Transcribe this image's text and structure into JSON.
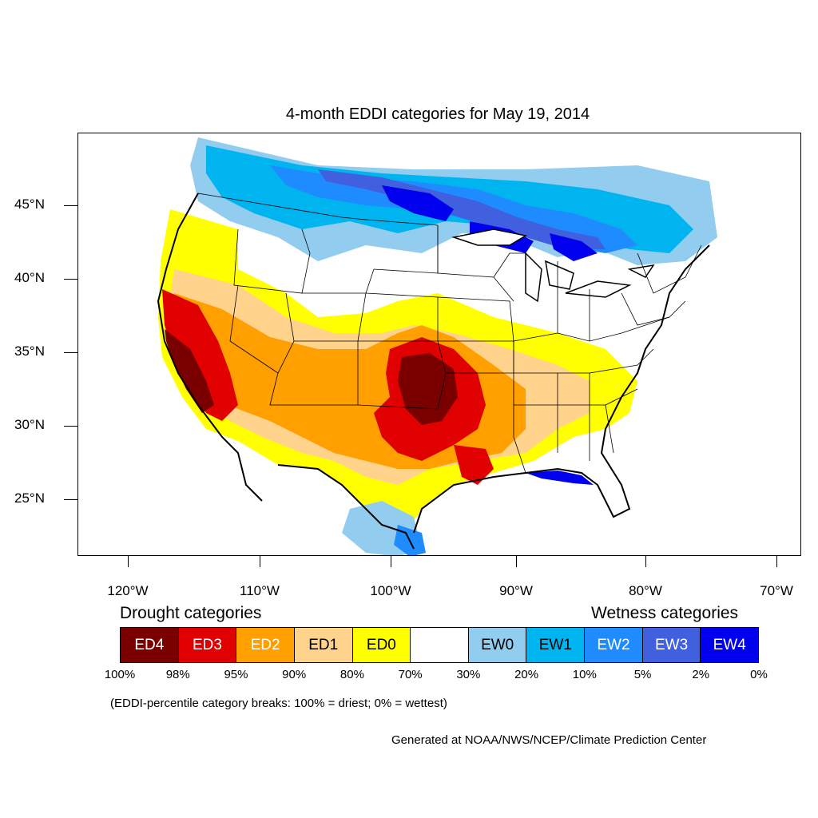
{
  "title": "4-month EDDI categories for May 19, 2014",
  "lat_labels": [
    "45°N",
    "40°N",
    "35°N",
    "30°N",
    "25°N"
  ],
  "lon_labels": [
    "120°W",
    "110°W",
    "100°W",
    "90°W",
    "80°W",
    "70°W"
  ],
  "legend": {
    "drought_heading": "Drought categories",
    "wetness_heading": "Wetness categories",
    "categories": [
      {
        "label": "ED4",
        "color": "#7a0000",
        "text_color": "#ffffff"
      },
      {
        "label": "ED3",
        "color": "#e00000",
        "text_color": "#ffffff"
      },
      {
        "label": "ED2",
        "color": "#ff9f00",
        "text_color": "#ffffff"
      },
      {
        "label": "ED1",
        "color": "#ffd38c",
        "text_color": "#000000"
      },
      {
        "label": "ED0",
        "color": "#ffff00",
        "text_color": "#000000"
      },
      {
        "label": "",
        "color": "#ffffff",
        "text_color": "#000000"
      },
      {
        "label": "EW0",
        "color": "#92cdf0",
        "text_color": "#000000"
      },
      {
        "label": "EW1",
        "color": "#00b4f0",
        "text_color": "#000000"
      },
      {
        "label": "EW2",
        "color": "#1e8cff",
        "text_color": "#ffffff"
      },
      {
        "label": "EW3",
        "color": "#4060e0",
        "text_color": "#ffffff"
      },
      {
        "label": "EW4",
        "color": "#0000ee",
        "text_color": "#ffffff"
      }
    ],
    "breaks": [
      "100%",
      "98%",
      "95%",
      "90%",
      "80%",
      "70%",
      "30%",
      "20%",
      "10%",
      "5%",
      "2%",
      "0%"
    ]
  },
  "note": "(EDDI-percentile category breaks: 100% = driest; 0% = wettest)",
  "credit": "Generated at NOAA/NWS/NCEP/Climate Prediction Center"
}
